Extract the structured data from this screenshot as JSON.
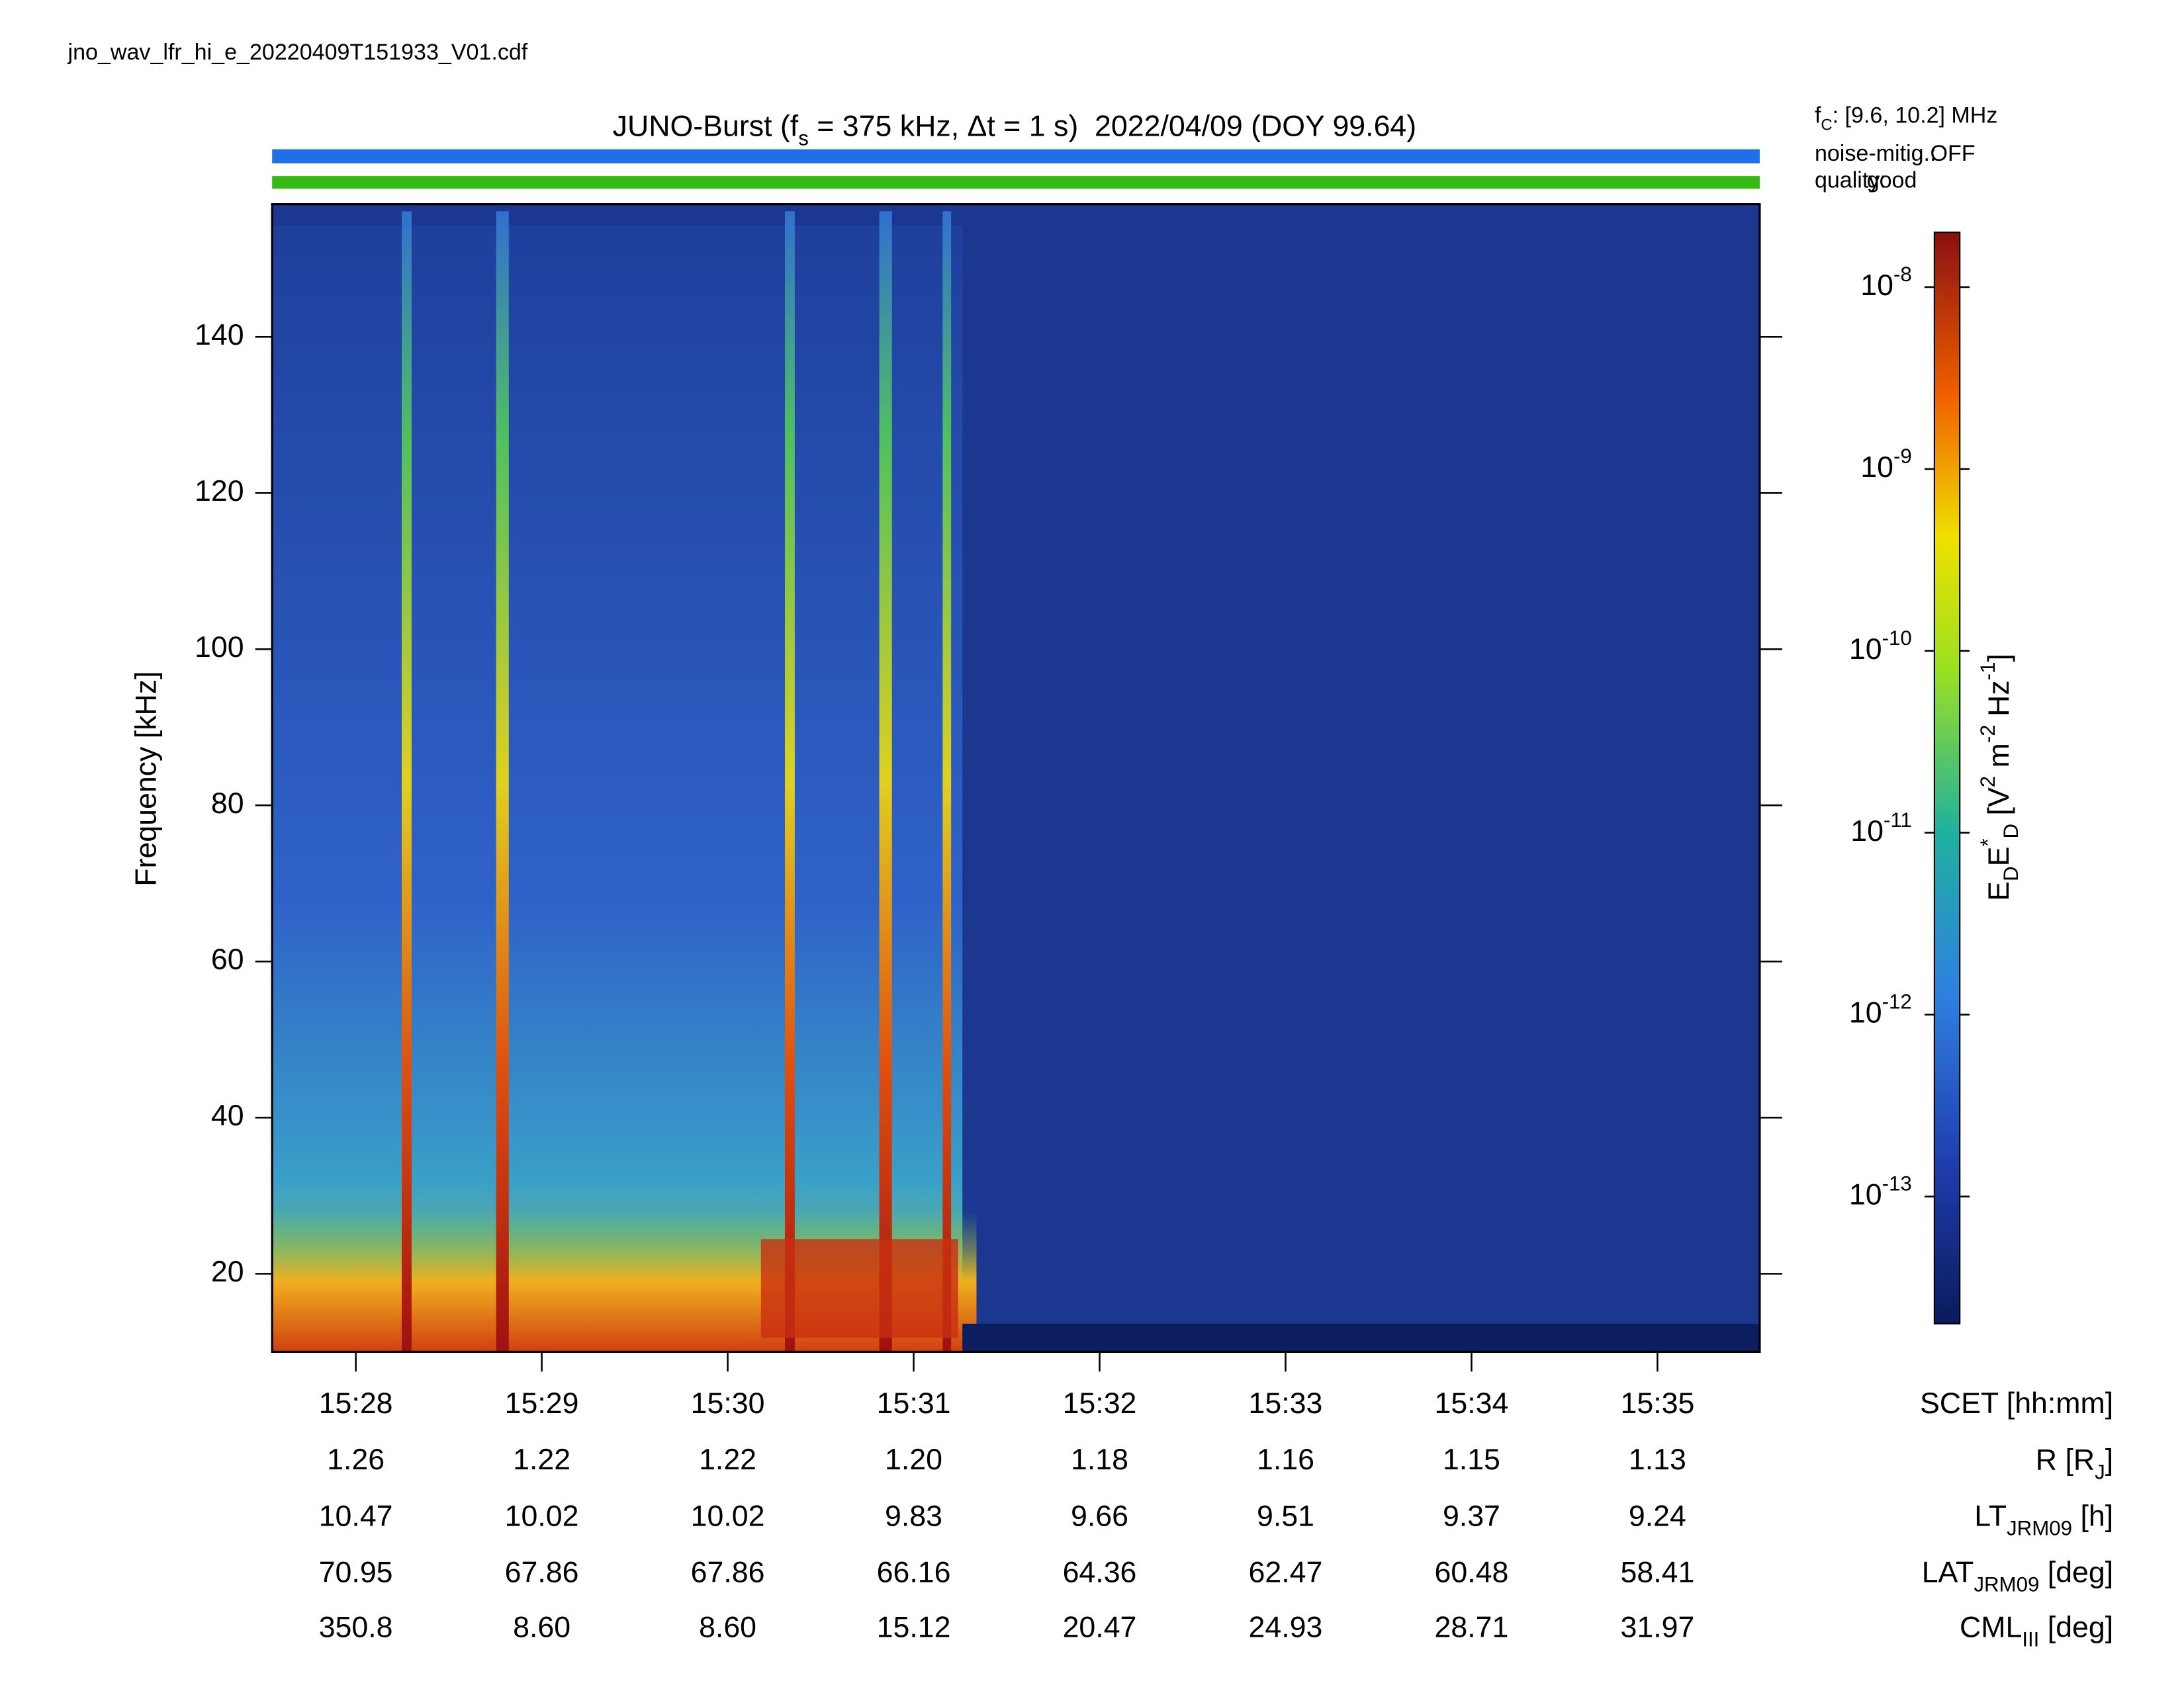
{
  "file_name": "jno_wav_lfr_hi_e_20220409T151933_V01.cdf",
  "chart_data": {
    "type": "spectrogram",
    "title": [
      {
        "text": "JUNO-Burst (f"
      },
      {
        "text": "s",
        "shift": "sub"
      },
      {
        "text": " = 375 kHz, Δt = 1 s)  2022/04/09 (DOY 99.64)"
      }
    ],
    "info": {
      "fc": [
        {
          "text": "f"
        },
        {
          "text": "C",
          "shift": "sub"
        },
        {
          "text": ": [9.6, 10.2] MHz"
        }
      ],
      "noise_label": "noise-mitig.:",
      "noise_value": "OFF",
      "noise_color": "#1f6fe8",
      "quality_label": "quality:",
      "quality_value": "good",
      "quality_color": "#33bb11"
    },
    "y_label": "Frequency [kHz]",
    "ylim": [
      10,
      157
    ],
    "yticks": [
      20,
      40,
      60,
      80,
      100,
      120,
      140
    ],
    "x_label": "SCET [hh:mm]",
    "xlim": [
      927.55,
      935.55
    ],
    "xticks": [
      {
        "value": 928,
        "label": "15:28"
      },
      {
        "value": 929,
        "label": "15:29"
      },
      {
        "value": 930,
        "label": "15:30"
      },
      {
        "value": 931,
        "label": "15:31"
      },
      {
        "value": 932,
        "label": "15:32"
      },
      {
        "value": 933,
        "label": "15:33"
      },
      {
        "value": 934,
        "label": "15:34"
      },
      {
        "value": 935,
        "label": "15:35"
      }
    ],
    "ephemeris": [
      {
        "label": [
          {
            "text": "R [R"
          },
          {
            "text": "J",
            "shift": "sub"
          },
          {
            "text": "]"
          }
        ],
        "values": [
          "1.26",
          "1.22",
          "1.22",
          "1.20",
          "1.18",
          "1.16",
          "1.15",
          "1.13"
        ]
      },
      {
        "label": [
          {
            "text": "LT"
          },
          {
            "text": "JRM09",
            "shift": "sub"
          },
          {
            "text": " [h]"
          }
        ],
        "values": [
          "10.47",
          "10.02",
          "10.02",
          "9.83",
          "9.66",
          "9.51",
          "9.37",
          "9.24"
        ]
      },
      {
        "label": [
          {
            "text": "LAT"
          },
          {
            "text": "JRM09",
            "shift": "sub"
          },
          {
            "text": " [deg]"
          }
        ],
        "values": [
          "70.95",
          "67.86",
          "67.86",
          "66.16",
          "64.36",
          "62.47",
          "60.48",
          "58.41"
        ]
      },
      {
        "label": [
          {
            "text": "CML"
          },
          {
            "text": "III",
            "shift": "sub"
          },
          {
            "text": " [deg]"
          }
        ],
        "values": [
          "350.8",
          "8.60",
          "8.60",
          "15.12",
          "20.47",
          "24.93",
          "28.71",
          "31.97"
        ]
      }
    ],
    "colorbar": {
      "log_scale": true,
      "clim": [
        2e-14,
        2e-08
      ],
      "ticks": [
        {
          "value": 1e-08,
          "label": [
            {
              "text": "10"
            },
            {
              "text": "-8",
              "shift": "super"
            }
          ]
        },
        {
          "value": 1e-09,
          "label": [
            {
              "text": "10"
            },
            {
              "text": "-9",
              "shift": "super"
            }
          ]
        },
        {
          "value": 1e-10,
          "label": [
            {
              "text": "10"
            },
            {
              "text": "-10",
              "shift": "super"
            }
          ]
        },
        {
          "value": 1e-11,
          "label": [
            {
              "text": "10"
            },
            {
              "text": "-11",
              "shift": "super"
            }
          ]
        },
        {
          "value": 1e-12,
          "label": [
            {
              "text": "10"
            },
            {
              "text": "-12",
              "shift": "super"
            }
          ]
        },
        {
          "value": 1e-13,
          "label": [
            {
              "text": "10"
            },
            {
              "text": "-13",
              "shift": "super"
            }
          ]
        }
      ],
      "label": [
        {
          "text": "E"
        },
        {
          "text": "D",
          "shift": "sub"
        },
        {
          "text": "E"
        },
        {
          "text": "*",
          "shift": "super"
        },
        {
          "text": "D",
          "shift": "sub"
        },
        {
          "text": " [V"
        },
        {
          "text": "2",
          "shift": "super"
        },
        {
          "text": " m"
        },
        {
          "text": "-2",
          "shift": "super"
        },
        {
          "text": " Hz"
        },
        {
          "text": "-1",
          "shift": "super"
        },
        {
          "text": "]"
        }
      ]
    }
  }
}
